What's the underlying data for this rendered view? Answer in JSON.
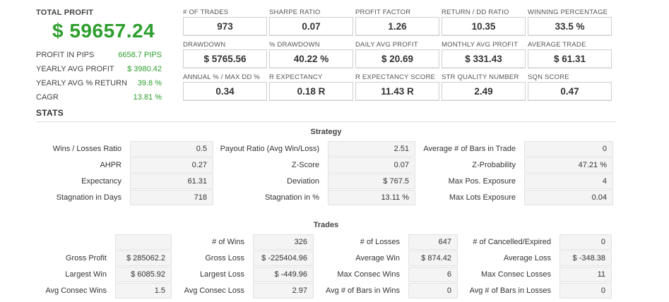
{
  "summary": {
    "total_label": "TOTAL PROFIT",
    "total_value": "$ 59657.24",
    "rows": [
      {
        "label": "PROFIT IN PIPS",
        "value": "6658.7 PIPS"
      },
      {
        "label": "YEARLY AVG PROFIT",
        "value": "$ 3980.42"
      },
      {
        "label": "YEARLY AVG % RETURN",
        "value": "39.8 %"
      },
      {
        "label": "CAGR",
        "value": "13.81 %"
      }
    ]
  },
  "metrics": [
    {
      "label": "# OF TRADES",
      "value": "973"
    },
    {
      "label": "SHARPE RATIO",
      "value": "0.07"
    },
    {
      "label": "PROFIT FACTOR",
      "value": "1.26"
    },
    {
      "label": "RETURN / DD RATIO",
      "value": "10.35"
    },
    {
      "label": "WINNING PERCENTAGE",
      "value": "33.5 %"
    },
    {
      "label": "DRAWDOWN",
      "value": "$ 5765.56"
    },
    {
      "label": "% DRAWDOWN",
      "value": "40.22 %"
    },
    {
      "label": "DAILY AVG PROFIT",
      "value": "$ 20.69"
    },
    {
      "label": "MONTHLY AVG PROFIT",
      "value": "$ 331.43"
    },
    {
      "label": "AVERAGE TRADE",
      "value": "$ 61.31"
    },
    {
      "label": "ANNUAL % / MAX DD %",
      "value": "0.34"
    },
    {
      "label": "R EXPECTANCY",
      "value": "0.18 R"
    },
    {
      "label": "R EXPECTANCY SCORE",
      "value": "11.43 R"
    },
    {
      "label": "STR QUALITY NUMBER",
      "value": "2.49"
    },
    {
      "label": "SQN SCORE",
      "value": "0.47"
    }
  ],
  "stats_title": "STATS",
  "strategy": {
    "title": "Strategy",
    "rows": [
      [
        {
          "label": "Wins / Losses Ratio",
          "value": "0.5"
        },
        {
          "label": "Payout Ratio (Avg Win/Loss)",
          "value": "2.51"
        },
        {
          "label": "Average # of Bars in Trade",
          "value": "0"
        }
      ],
      [
        {
          "label": "AHPR",
          "value": "0.27"
        },
        {
          "label": "Z-Score",
          "value": "0.07"
        },
        {
          "label": "Z-Probability",
          "value": "47.21 %"
        }
      ],
      [
        {
          "label": "Expectancy",
          "value": "61.31"
        },
        {
          "label": "Deviation",
          "value": "$ 767.5"
        },
        {
          "label": "Max Pos. Exposure",
          "value": "4"
        }
      ],
      [
        {
          "label": "Stagnation in Days",
          "value": "718"
        },
        {
          "label": "Stagnation in %",
          "value": "13.11 %"
        },
        {
          "label": "Max Lots Exposure",
          "value": "0.04"
        }
      ]
    ]
  },
  "trades": {
    "title": "Trades",
    "rows": [
      [
        {
          "label": "",
          "value": ""
        },
        {
          "label": "# of Wins",
          "value": "326"
        },
        {
          "label": "# of Losses",
          "value": "647"
        },
        {
          "label": "# of Cancelled/Expired",
          "value": "0"
        }
      ],
      [
        {
          "label": "Gross Profit",
          "value": "$ 285062.2"
        },
        {
          "label": "Gross Loss",
          "value": "$ -225404.96"
        },
        {
          "label": "Average Win",
          "value": "$ 874.42"
        },
        {
          "label": "Average Loss",
          "value": "$ -348.38"
        }
      ],
      [
        {
          "label": "Largest Win",
          "value": "$ 6085.92"
        },
        {
          "label": "Largest Loss",
          "value": "$ -449.96"
        },
        {
          "label": "Max Consec Wins",
          "value": "6"
        },
        {
          "label": "Max Consec Losses",
          "value": "11"
        }
      ],
      [
        {
          "label": "Avg Consec Wins",
          "value": "1.5"
        },
        {
          "label": "Avg Consec Loss",
          "value": "2.97"
        },
        {
          "label": "Avg # of Bars in Wins",
          "value": "0"
        },
        {
          "label": "Avg # of Bars in Losses",
          "value": "0"
        }
      ]
    ]
  }
}
